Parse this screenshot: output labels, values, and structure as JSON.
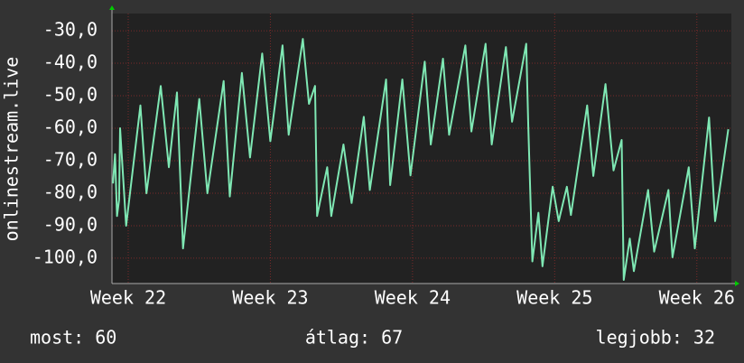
{
  "chart_data": {
    "type": "line",
    "y_label": "onlinestream.live",
    "x": [
      -0.75,
      -0.65,
      -0.55,
      -0.45,
      -0.4,
      -0.1,
      0.6,
      0.9,
      1.6,
      2.0,
      2.4,
      2.7,
      3.5,
      3.9,
      4.7,
      5.0,
      5.6,
      6.0,
      6.6,
      7.0,
      7.6,
      7.9,
      8.6,
      8.9,
      9.2,
      9.3,
      9.8,
      10.0,
      10.6,
      11.0,
      11.6,
      11.9,
      12.7,
      12.9,
      13.5,
      13.9,
      14.6,
      14.9,
      15.5,
      15.8,
      16.6,
      16.9,
      17.6,
      17.9,
      18.6,
      18.9,
      19.6,
      19.7,
      19.9,
      20.2,
      20.4,
      20.9,
      21.2,
      21.6,
      21.8,
      22.6,
      22.9,
      23.5,
      23.9,
      24.3,
      24.4,
      24.7,
      24.9,
      25.6,
      25.9,
      26.6,
      26.8,
      27.6,
      27.9,
      28.6,
      28.9,
      29.55
    ],
    "values": [
      -77,
      -68,
      -87,
      -82,
      -60,
      -90,
      -53,
      -80,
      -47,
      -72,
      -49,
      -97,
      -51,
      -80,
      -45.5,
      -81,
      -43,
      -69,
      -37,
      -64,
      -34.5,
      -62,
      -32.5,
      -52.5,
      -47,
      -87,
      -72,
      -87,
      -65,
      -83,
      -56.5,
      -79,
      -45,
      -77.5,
      -45,
      -74.5,
      -39.5,
      -65,
      -38.6,
      -62,
      -34.5,
      -61,
      -34,
      -65,
      -35,
      -58,
      -34,
      -59.5,
      -101,
      -86,
      -102.5,
      -78,
      -88.6,
      -78,
      -86.7,
      -53,
      -74.7,
      -46.4,
      -73,
      -63.6,
      -106.7,
      -94,
      -104,
      -79,
      -98,
      -79,
      -99.7,
      -72,
      -97,
      -56.7,
      -88.6,
      -60.3
    ],
    "color": "#7fe8b4",
    "xlim": [
      -0.8,
      29.7
    ],
    "xticks": [
      {
        "value": 0,
        "label": "Week 22"
      },
      {
        "value": 7,
        "label": "Week 23"
      },
      {
        "value": 14,
        "label": "Week 24"
      },
      {
        "value": 21,
        "label": "Week 25"
      },
      {
        "value": 28,
        "label": "Week 26"
      }
    ],
    "ylim": [
      -107.8,
      -24.7
    ],
    "yticks": [
      {
        "value": -30,
        "label": "-30,0"
      },
      {
        "value": -40,
        "label": "-40,0"
      },
      {
        "value": -50,
        "label": "-50,0"
      },
      {
        "value": -60,
        "label": "-60,0"
      },
      {
        "value": -70,
        "label": "-70,0"
      },
      {
        "value": -80,
        "label": "-80,0"
      },
      {
        "value": -90,
        "label": "-90,0"
      },
      {
        "value": -100,
        "label": "-100,0"
      }
    ],
    "grid": true,
    "stats": [
      "most: 60",
      "átlag: 67",
      "legjobb: 32"
    ]
  }
}
